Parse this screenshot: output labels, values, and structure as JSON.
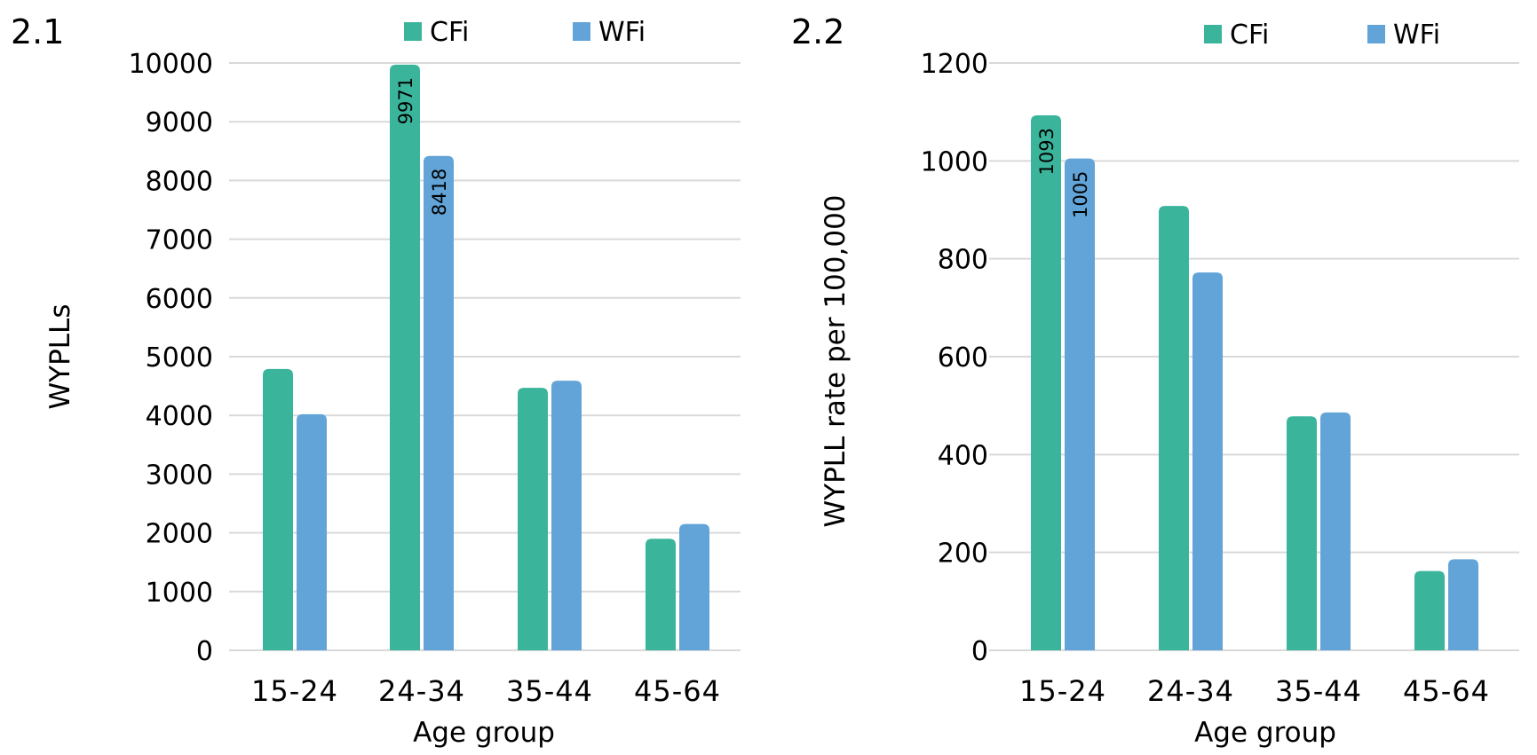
{
  "chart_data": [
    {
      "type": "bar",
      "panel_label": "2.1",
      "xlabel": "Age group",
      "ylabel": "WYPLLs",
      "categories": [
        "15-24",
        "24-34",
        "35-44",
        "45-64"
      ],
      "ylim": [
        0,
        10000
      ],
      "yticks": [
        0,
        1000,
        2000,
        3000,
        4000,
        5000,
        6000,
        7000,
        8000,
        9000,
        10000
      ],
      "yticks_text": [
        "0",
        "1000",
        "2000",
        "3000",
        "4000",
        "5000",
        "6000",
        "7000",
        "8000",
        "9000",
        "10000"
      ],
      "grid": true,
      "legend_position": "top",
      "series": [
        {
          "name": "CFi",
          "color": "#3AB59C",
          "values": [
            4790,
            9971,
            4470,
            1900
          ],
          "labels": [
            "",
            "9971",
            "",
            ""
          ]
        },
        {
          "name": "WFi",
          "color": "#62A4D8",
          "values": [
            4020,
            8418,
            4590,
            2150
          ],
          "labels": [
            "",
            "8418",
            "",
            ""
          ]
        }
      ]
    },
    {
      "type": "bar",
      "panel_label": "2.2",
      "xlabel": "Age group",
      "ylabel": "WYPLL rate per 100,000",
      "categories": [
        "15-24",
        "24-34",
        "35-44",
        "45-64"
      ],
      "ylim": [
        0,
        1200
      ],
      "yticks": [
        0,
        200,
        400,
        600,
        800,
        1000,
        1200
      ],
      "yticks_text": [
        "0",
        "200",
        "400",
        "600",
        "800",
        "1000",
        "1200"
      ],
      "grid": true,
      "legend_position": "top",
      "series": [
        {
          "name": "CFi",
          "color": "#3AB59C",
          "values": [
            1093,
            908,
            478,
            162
          ],
          "labels": [
            "1093",
            "",
            "",
            ""
          ]
        },
        {
          "name": "WFi",
          "color": "#62A4D8",
          "values": [
            1005,
            772,
            486,
            186
          ],
          "labels": [
            "1005",
            "",
            "",
            ""
          ]
        }
      ]
    }
  ]
}
